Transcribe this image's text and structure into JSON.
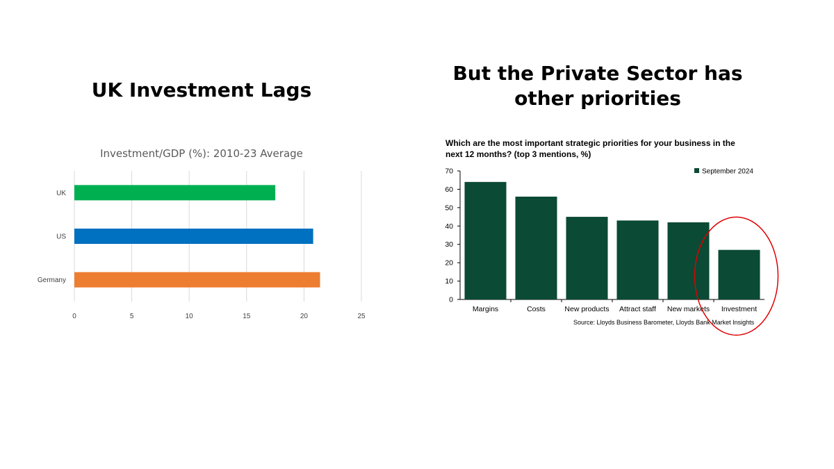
{
  "slide": {
    "left_heading": "UK Investment Lags",
    "right_heading_lines": [
      "But the Private Sector has",
      "other priorities"
    ]
  },
  "chart_data": [
    {
      "type": "bar",
      "orientation": "horizontal",
      "title": "Investment/GDP (%): 2010-23 Average",
      "categories": [
        "UK",
        "US",
        "Germany"
      ],
      "values": [
        17.5,
        20.8,
        21.4
      ],
      "colors": [
        "#00b050",
        "#0070c0",
        "#ed7d31"
      ],
      "xlim": [
        0,
        25
      ],
      "xticks": [
        0,
        5,
        10,
        15,
        20,
        25
      ],
      "grid": true,
      "xlabel": "",
      "ylabel": ""
    },
    {
      "type": "bar",
      "title_lines": [
        "Which are the most important strategic priorities for your business in the",
        "next 12 months? (top 3 mentions, %)"
      ],
      "categories": [
        "Margins",
        "Costs",
        "New products",
        "Attract staff",
        "New markets",
        "Investment"
      ],
      "series": [
        {
          "name": "September 2024",
          "values": [
            64,
            56,
            45,
            43,
            42,
            27
          ],
          "color": "#0b4a34"
        }
      ],
      "ylim": [
        0,
        70
      ],
      "yticks": [
        0,
        10,
        20,
        30,
        40,
        50,
        60,
        70
      ],
      "grid": false,
      "legend_position": "top-right",
      "source": "Source: Lloyds Business Barometer, Lloyds Bank Market Insights",
      "highlight": {
        "category": "Investment",
        "shape": "ellipse",
        "color": "#e00000"
      }
    }
  ]
}
